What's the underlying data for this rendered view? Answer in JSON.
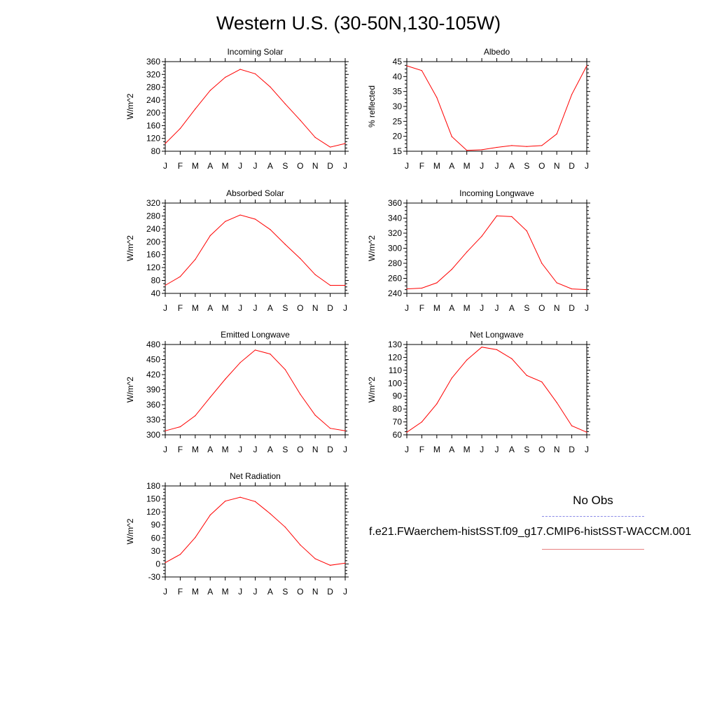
{
  "title": "Western U.S. (30-50N,130-105W)",
  "legend": {
    "obs_label": "No Obs",
    "obs_color": "#8a8ae6",
    "model_label": "f.e21.FWaerchem-histSST.f09_g17.CMIP6-histSST-WACCM.001",
    "model_color": "#ff0000"
  },
  "chart_data": [
    {
      "type": "line",
      "title": "Incoming Solar",
      "ylabel": "W/m^2",
      "x": [
        "J",
        "F",
        "M",
        "A",
        "M",
        "J",
        "J",
        "A",
        "S",
        "O",
        "N",
        "D",
        "J"
      ],
      "ylim": [
        80,
        360
      ],
      "yticks": [
        80,
        120,
        160,
        200,
        240,
        280,
        320,
        360
      ],
      "series": [
        {
          "values": [
            104,
            151,
            212,
            270,
            311,
            336,
            322,
            281,
            228,
            177,
            123,
            93,
            104
          ]
        }
      ]
    },
    {
      "type": "line",
      "title": "Albedo",
      "ylabel": "% reflected",
      "x": [
        "J",
        "F",
        "M",
        "A",
        "M",
        "J",
        "J",
        "A",
        "S",
        "O",
        "N",
        "D",
        "J"
      ],
      "ylim": [
        15,
        45
      ],
      "yticks": [
        15,
        20,
        25,
        30,
        35,
        40,
        45
      ],
      "series": [
        {
          "values": [
            43.6,
            42,
            33,
            19.9,
            15.3,
            15.5,
            16.3,
            16.9,
            16.6,
            16.9,
            20.8,
            34,
            43.6
          ]
        }
      ]
    },
    {
      "type": "line",
      "title": "Absorbed Solar",
      "ylabel": "W/m^2",
      "x": [
        "J",
        "F",
        "M",
        "A",
        "M",
        "J",
        "J",
        "A",
        "S",
        "O",
        "N",
        "D",
        "J"
      ],
      "ylim": [
        40,
        320
      ],
      "yticks": [
        40,
        80,
        120,
        160,
        200,
        240,
        280,
        320
      ],
      "series": [
        {
          "values": [
            65,
            92,
            145,
            219,
            263,
            283,
            270,
            238,
            192,
            148,
            98,
            65,
            65
          ]
        }
      ]
    },
    {
      "type": "line",
      "title": "Incoming Longwave",
      "ylabel": "W/m^2",
      "x": [
        "J",
        "F",
        "M",
        "A",
        "M",
        "J",
        "J",
        "A",
        "S",
        "O",
        "N",
        "D",
        "J"
      ],
      "ylim": [
        240,
        360
      ],
      "yticks": [
        240,
        260,
        280,
        300,
        320,
        340,
        360
      ],
      "series": [
        {
          "values": [
            246,
            247,
            254,
            272,
            295,
            316,
            343,
            342,
            323,
            280,
            254,
            246,
            245
          ]
        }
      ]
    },
    {
      "type": "line",
      "title": "Emitted Longwave",
      "ylabel": "W/m^2",
      "x": [
        "J",
        "F",
        "M",
        "A",
        "M",
        "J",
        "J",
        "A",
        "S",
        "O",
        "N",
        "D",
        "J"
      ],
      "ylim": [
        300,
        480
      ],
      "yticks": [
        300,
        330,
        360,
        390,
        420,
        450,
        480
      ],
      "series": [
        {
          "values": [
            308,
            316,
            338,
            375,
            411,
            444,
            469,
            461,
            430,
            381,
            339,
            313,
            308
          ]
        }
      ]
    },
    {
      "type": "line",
      "title": "Net Longwave",
      "ylabel": "W/m^2",
      "x": [
        "J",
        "F",
        "M",
        "A",
        "M",
        "J",
        "J",
        "A",
        "S",
        "O",
        "N",
        "D",
        "J"
      ],
      "ylim": [
        60,
        130
      ],
      "yticks": [
        60,
        70,
        80,
        90,
        100,
        110,
        120,
        130
      ],
      "series": [
        {
          "values": [
            62,
            70,
            84,
            104,
            118,
            128,
            126,
            119,
            106,
            101,
            85,
            67,
            62
          ]
        }
      ]
    },
    {
      "type": "line",
      "title": "Net Radiation",
      "ylabel": "W/m^2",
      "x": [
        "J",
        "F",
        "M",
        "A",
        "M",
        "J",
        "J",
        "A",
        "S",
        "O",
        "N",
        "D",
        "J"
      ],
      "ylim": [
        -30,
        180
      ],
      "yticks": [
        -30,
        0,
        30,
        60,
        90,
        120,
        150,
        180
      ],
      "series": [
        {
          "values": [
            3,
            22,
            61,
            113,
            145,
            154,
            144,
            116,
            85,
            44,
            12,
            -3,
            2
          ]
        }
      ]
    }
  ]
}
